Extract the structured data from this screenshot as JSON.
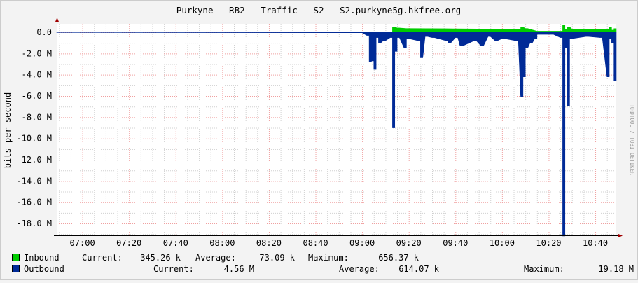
{
  "chart_data": {
    "type": "area",
    "title": "Purkyne - RB2 - Traffic - S2 - S2.purkyne5g.hkfree.org",
    "ylabel": "bits per second",
    "watermark": "RRDTOOL / TOBI OETIKER",
    "ylim": [
      -19.2,
      0.6
    ],
    "xlim": [
      "06:49",
      "10:49"
    ],
    "grid": true,
    "y_ticks": [
      "0.0",
      "-2.0 M",
      "-4.0 M",
      "-6.0 M",
      "-8.0 M",
      "-10.0 M",
      "-12.0 M",
      "-14.0 M",
      "-16.0 M",
      "-18.0 M"
    ],
    "y_tick_values": [
      0,
      -2,
      -4,
      -6,
      -8,
      -10,
      -12,
      -14,
      -16,
      -18
    ],
    "x_ticks": [
      "07:00",
      "07:20",
      "07:40",
      "08:00",
      "08:20",
      "08:40",
      "09:00",
      "09:20",
      "09:40",
      "10:00",
      "10:20",
      "10:40"
    ],
    "series": [
      {
        "name": "Inbound",
        "color": "#00cc00",
        "unit": "M",
        "x": [
          "06:49",
          "09:00",
          "09:13",
          "09:14",
          "09:16",
          "09:20",
          "09:40",
          "09:55",
          "10:08",
          "10:09",
          "10:11",
          "10:16",
          "10:26",
          "10:27",
          "10:28",
          "10:29",
          "10:31",
          "10:46",
          "10:47",
          "10:48",
          "10:49"
        ],
        "values": [
          0,
          0,
          0.05,
          0.5,
          0.4,
          0.35,
          0.33,
          0.3,
          0.3,
          0.5,
          0.35,
          0.1,
          0.1,
          0.656,
          0.3,
          0.5,
          0.3,
          0.3,
          0.5,
          0.2,
          0.345
        ],
        "legend": {
          "current": "345.26 k",
          "average": "73.09 k",
          "maximum": "656.37 k"
        }
      },
      {
        "name": "Outbound",
        "color": "#002a97",
        "unit": "M",
        "x": [
          "06:49",
          "09:00",
          "09:03",
          "09:04",
          "09:05",
          "09:06",
          "09:07",
          "09:08",
          "09:10",
          "09:13",
          "09:14",
          "09:15",
          "09:16",
          "09:19",
          "09:20",
          "09:25",
          "09:26",
          "09:28",
          "09:31",
          "09:37",
          "09:38",
          "09:41",
          "09:43",
          "09:49",
          "09:52",
          "09:55",
          "09:58",
          "10:01",
          "10:07",
          "10:09",
          "10:10",
          "10:11",
          "10:13",
          "10:15",
          "10:16",
          "10:22",
          "10:26",
          "10:27",
          "10:28",
          "10:29",
          "10:30",
          "10:37",
          "10:43",
          "10:46",
          "10:47",
          "10:48",
          "10:49"
        ],
        "values": [
          -0.02,
          -0.05,
          -0.3,
          -2.8,
          -2.7,
          -3.5,
          -0.5,
          -1.0,
          -0.8,
          -0.5,
          -9.0,
          -1.8,
          -0.5,
          -1.5,
          -0.6,
          -0.8,
          -2.4,
          -0.4,
          -0.5,
          -0.8,
          -1.0,
          -0.5,
          -1.3,
          -0.8,
          -1.3,
          -0.4,
          -0.8,
          -0.6,
          -0.8,
          -6.1,
          -4.2,
          -1.5,
          -1.0,
          -0.6,
          -0.2,
          -0.2,
          -0.5,
          -19.18,
          -1.5,
          -6.9,
          -0.6,
          -0.4,
          -0.5,
          -4.2,
          -0.6,
          -1.0,
          -4.56
        ],
        "legend": {
          "current": "4.56 M",
          "average": "614.07 k",
          "maximum": "19.18 M"
        }
      }
    ]
  },
  "legend_labels": {
    "current": "Current:",
    "average": "Average:",
    "maximum": "Maximum:"
  }
}
